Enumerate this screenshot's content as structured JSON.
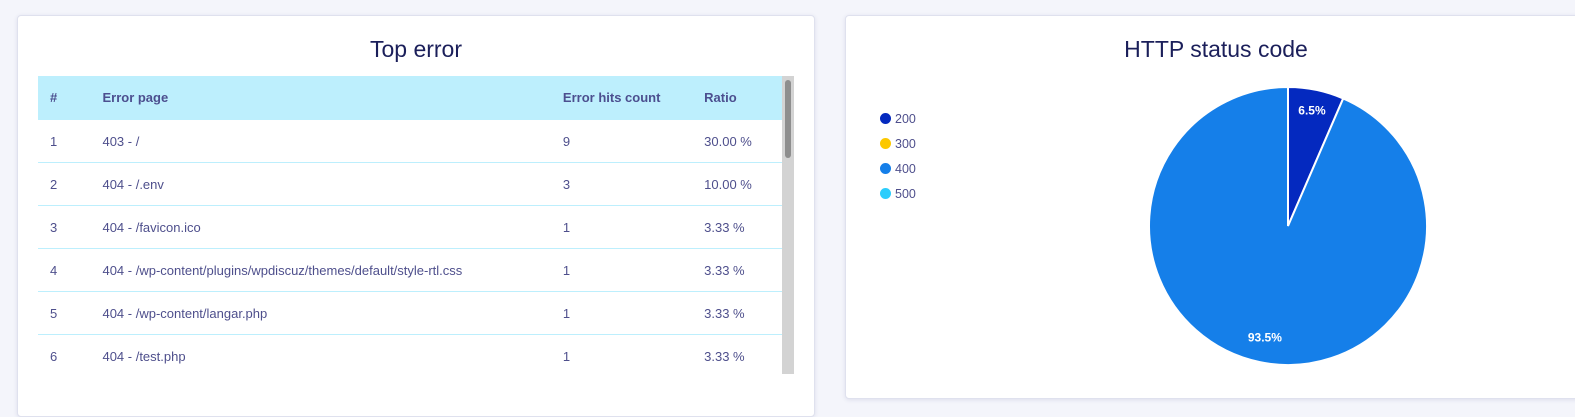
{
  "top_error": {
    "title": "Top error",
    "columns": [
      "#",
      "Error page",
      "Error hits count",
      "Ratio"
    ],
    "rows": [
      [
        "1",
        "403 - /",
        "9",
        "30.00 %"
      ],
      [
        "2",
        "404 - /.env",
        "3",
        "10.00 %"
      ],
      [
        "3",
        "404 - /favicon.ico",
        "1",
        "3.33 %"
      ],
      [
        "4",
        "404 - /wp-content/plugins/wpdiscuz/themes/default/style-rtl.css",
        "1",
        "3.33 %"
      ],
      [
        "5",
        "404 - /wp-content/langar.php",
        "1",
        "3.33 %"
      ],
      [
        "6",
        "404 - /test.php",
        "1",
        "3.33 %"
      ]
    ]
  },
  "http_status": {
    "title": "HTTP status code",
    "legend": [
      {
        "label": "200",
        "color": "#0429bf"
      },
      {
        "label": "300",
        "color": "#fcc800"
      },
      {
        "label": "400",
        "color": "#157fe9"
      },
      {
        "label": "500",
        "color": "#2ccdfc"
      }
    ]
  },
  "chart_data": {
    "type": "pie",
    "title": "HTTP status code",
    "legend_position": "left",
    "slices": [
      {
        "label": "200",
        "value": 6.5,
        "data_label": "6.5%",
        "color": "#0429bf"
      },
      {
        "label": "300",
        "value": 0,
        "color": "#fcc800"
      },
      {
        "label": "400",
        "value": 93.5,
        "data_label": "93.5%",
        "color": "#157fe9"
      },
      {
        "label": "500",
        "value": 0,
        "color": "#2ccdfc"
      }
    ]
  }
}
